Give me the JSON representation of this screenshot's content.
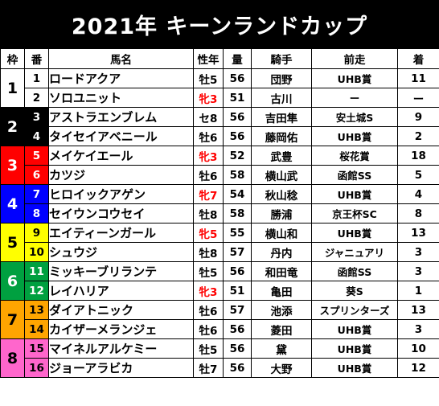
{
  "title": "2021年 キーンランドカップ",
  "headers": {
    "waku": "枠",
    "ban": "番",
    "name": "馬名",
    "sex_age": "性年",
    "weight": "量",
    "jockey": "騎手",
    "prev": "前走",
    "result": "着"
  },
  "waku_colors": {
    "1": {
      "bg": "#ffffff",
      "fg": "#000000"
    },
    "2": {
      "bg": "#000000",
      "fg": "#ffffff"
    },
    "3": {
      "bg": "#ff0000",
      "fg": "#ffffff"
    },
    "4": {
      "bg": "#0000ff",
      "fg": "#ffffff"
    },
    "5": {
      "bg": "#ffff00",
      "fg": "#000000"
    },
    "6": {
      "bg": "#00a040",
      "fg": "#ffffff"
    },
    "7": {
      "bg": "#ffa500",
      "fg": "#000000"
    },
    "8": {
      "bg": "#ff66cc",
      "fg": "#000000"
    }
  },
  "horses": [
    {
      "waku": "1",
      "ban": "1",
      "name": "ロードアクア",
      "sex_age": "牡5",
      "filly": false,
      "weight": "56",
      "jockey": "団野",
      "prev": "UHB賞",
      "result": "11"
    },
    {
      "waku": "1",
      "ban": "2",
      "name": "ソロユニット",
      "sex_age": "牝3",
      "filly": true,
      "weight": "51",
      "jockey": "古川",
      "prev": "ー",
      "result": "ー"
    },
    {
      "waku": "2",
      "ban": "3",
      "name": "アストラエンブレム",
      "sex_age": "セ8",
      "filly": false,
      "weight": "56",
      "jockey": "吉田隼",
      "prev": "安土城S",
      "result": "9"
    },
    {
      "waku": "2",
      "ban": "4",
      "name": "タイセイアベニール",
      "sex_age": "牡6",
      "filly": false,
      "weight": "56",
      "jockey": "藤岡佑",
      "prev": "UHB賞",
      "result": "2"
    },
    {
      "waku": "3",
      "ban": "5",
      "name": "メイケイエール",
      "sex_age": "牝3",
      "filly": true,
      "weight": "52",
      "jockey": "武豊",
      "prev": "桜花賞",
      "result": "18"
    },
    {
      "waku": "3",
      "ban": "6",
      "name": "カツジ",
      "sex_age": "牡6",
      "filly": false,
      "weight": "58",
      "jockey": "横山武",
      "prev": "函館SS",
      "result": "5"
    },
    {
      "waku": "4",
      "ban": "7",
      "name": "ヒロイックアゲン",
      "sex_age": "牝7",
      "filly": true,
      "weight": "54",
      "jockey": "秋山稔",
      "prev": "UHB賞",
      "result": "4"
    },
    {
      "waku": "4",
      "ban": "8",
      "name": "セイウンコウセイ",
      "sex_age": "牡8",
      "filly": false,
      "weight": "58",
      "jockey": "勝浦",
      "prev": "京王杯SC",
      "result": "8"
    },
    {
      "waku": "5",
      "ban": "9",
      "name": "エイティーンガール",
      "sex_age": "牝5",
      "filly": true,
      "weight": "55",
      "jockey": "横山和",
      "prev": "UHB賞",
      "result": "13"
    },
    {
      "waku": "5",
      "ban": "10",
      "name": "シュウジ",
      "sex_age": "牡8",
      "filly": false,
      "weight": "57",
      "jockey": "丹内",
      "prev": "ジャニュアリ",
      "result": "3"
    },
    {
      "waku": "6",
      "ban": "11",
      "name": "ミッキーブリランテ",
      "sex_age": "牡5",
      "filly": false,
      "weight": "56",
      "jockey": "和田竜",
      "prev": "函館SS",
      "result": "3"
    },
    {
      "waku": "6",
      "ban": "12",
      "name": "レイハリア",
      "sex_age": "牝3",
      "filly": true,
      "weight": "51",
      "jockey": "亀田",
      "prev": "葵S",
      "result": "1"
    },
    {
      "waku": "7",
      "ban": "13",
      "name": "ダイアトニック",
      "sex_age": "牡6",
      "filly": false,
      "weight": "57",
      "jockey": "池添",
      "prev": "スプリンターズ",
      "result": "13"
    },
    {
      "waku": "7",
      "ban": "14",
      "name": "カイザーメランジェ",
      "sex_age": "牡6",
      "filly": false,
      "weight": "56",
      "jockey": "菱田",
      "prev": "UHB賞",
      "result": "3"
    },
    {
      "waku": "8",
      "ban": "15",
      "name": "マイネルアルケミー",
      "sex_age": "牡5",
      "filly": false,
      "weight": "56",
      "jockey": "黛",
      "prev": "UHB賞",
      "result": "10"
    },
    {
      "waku": "8",
      "ban": "16",
      "name": "ジョーアラビカ",
      "sex_age": "牡7",
      "filly": false,
      "weight": "56",
      "jockey": "大野",
      "prev": "UHB賞",
      "result": "12"
    }
  ]
}
